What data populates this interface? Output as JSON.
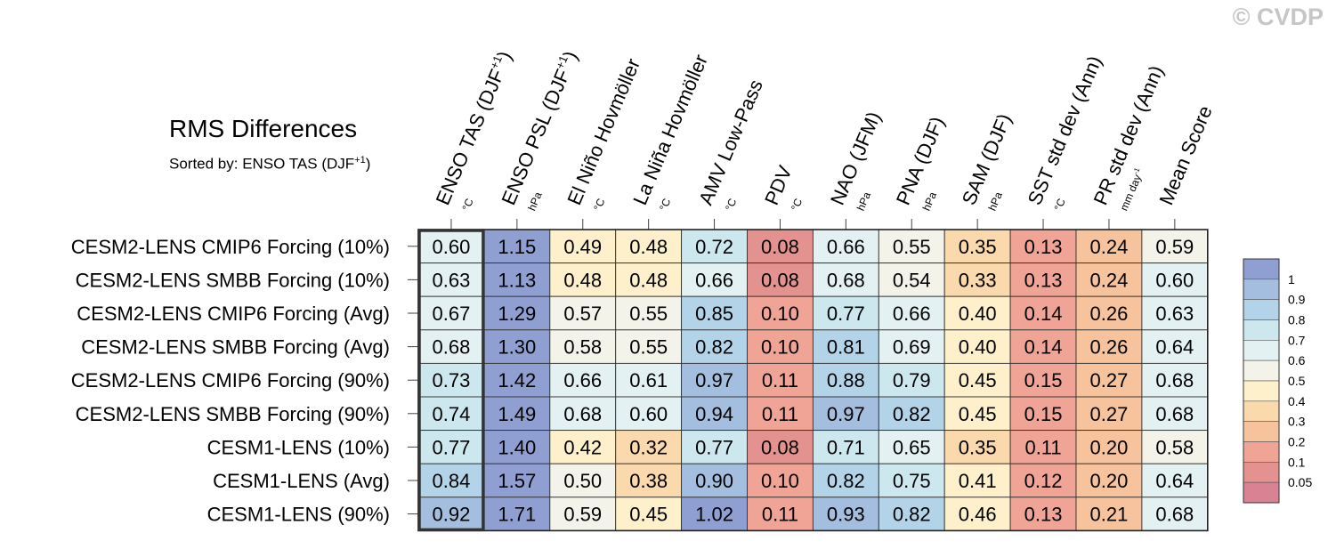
{
  "watermark": "© CVDP",
  "chart_data": {
    "type": "heatmap",
    "title": "RMS Differences",
    "subtitle_prefix": "Sorted by: ENSO TAS (DJF",
    "subtitle_sup": "+1",
    "subtitle_suffix": ")",
    "columns": [
      {
        "label": "ENSO TAS (DJF",
        "sup": "+1",
        "suffix": ")",
        "unit": "°C"
      },
      {
        "label": "ENSO PSL (DJF",
        "sup": "+1",
        "suffix": ")",
        "unit": "hPa"
      },
      {
        "label": "El Niño Hovmöller",
        "unit": "°C"
      },
      {
        "label": "La Niña Hovmöller",
        "unit": "°C"
      },
      {
        "label": "AMV Low-Pass",
        "unit": "°C"
      },
      {
        "label": "PDV",
        "unit": "°C"
      },
      {
        "label": "NAO (JFM)",
        "unit": "hPa"
      },
      {
        "label": "PNA (DJF)",
        "unit": "hPa"
      },
      {
        "label": "SAM (DJF)",
        "unit": "hPa"
      },
      {
        "label": "SST std dev (Ann)",
        "unit": "°C"
      },
      {
        "label": "PR std dev (Ann)",
        "unit": "mm day",
        "unit_sup": "-1"
      },
      {
        "label": "Mean Score",
        "unit": ""
      }
    ],
    "rows": [
      "CESM2-LENS CMIP6 Forcing (10%)",
      "CESM2-LENS SMBB Forcing (10%)",
      "CESM2-LENS CMIP6 Forcing (Avg)",
      "CESM2-LENS SMBB Forcing (Avg)",
      "CESM2-LENS CMIP6 Forcing (90%)",
      "CESM2-LENS SMBB Forcing (90%)",
      "CESM1-LENS (10%)",
      "CESM1-LENS (Avg)",
      "CESM1-LENS (90%)"
    ],
    "values": [
      [
        "0.60",
        "1.15",
        "0.49",
        "0.48",
        "0.72",
        "0.08",
        "0.66",
        "0.55",
        "0.35",
        "0.13",
        "0.24",
        "0.59"
      ],
      [
        "0.63",
        "1.13",
        "0.48",
        "0.48",
        "0.66",
        "0.08",
        "0.68",
        "0.54",
        "0.33",
        "0.13",
        "0.24",
        "0.60"
      ],
      [
        "0.67",
        "1.29",
        "0.57",
        "0.55",
        "0.85",
        "0.10",
        "0.77",
        "0.66",
        "0.40",
        "0.14",
        "0.26",
        "0.63"
      ],
      [
        "0.68",
        "1.30",
        "0.58",
        "0.55",
        "0.82",
        "0.10",
        "0.81",
        "0.69",
        "0.40",
        "0.14",
        "0.26",
        "0.64"
      ],
      [
        "0.73",
        "1.42",
        "0.66",
        "0.61",
        "0.97",
        "0.11",
        "0.88",
        "0.79",
        "0.45",
        "0.15",
        "0.27",
        "0.68"
      ],
      [
        "0.74",
        "1.49",
        "0.68",
        "0.60",
        "0.94",
        "0.11",
        "0.97",
        "0.82",
        "0.45",
        "0.15",
        "0.27",
        "0.68"
      ],
      [
        "0.77",
        "1.40",
        "0.42",
        "0.32",
        "0.77",
        "0.08",
        "0.71",
        "0.65",
        "0.35",
        "0.11",
        "0.20",
        "0.58"
      ],
      [
        "0.84",
        "1.57",
        "0.50",
        "0.38",
        "0.90",
        "0.10",
        "0.82",
        "0.75",
        "0.41",
        "0.12",
        "0.20",
        "0.64"
      ],
      [
        "0.92",
        "1.71",
        "0.59",
        "0.45",
        "1.02",
        "0.11",
        "0.93",
        "0.82",
        "0.46",
        "0.13",
        "0.21",
        "0.68"
      ]
    ],
    "highlighted_column": 0,
    "colorbar": {
      "levels": [
        0.05,
        0.1,
        0.2,
        0.3,
        0.4,
        0.5,
        0.6,
        0.7,
        0.8,
        0.9,
        1
      ],
      "labels": [
        "0.05",
        "0.1",
        "0.2",
        "0.3",
        "0.4",
        "0.5",
        "0.6",
        "0.7",
        "0.8",
        "0.9",
        "1"
      ],
      "colors": [
        "#d98294",
        "#e4928f",
        "#f0a496",
        "#f7c39d",
        "#fad9ad",
        "#fdf0cb",
        "#f3f3e9",
        "#e3f1f2",
        "#cde7ef",
        "#b3d4e8",
        "#a4bedf",
        "#8f9fd1"
      ]
    }
  }
}
